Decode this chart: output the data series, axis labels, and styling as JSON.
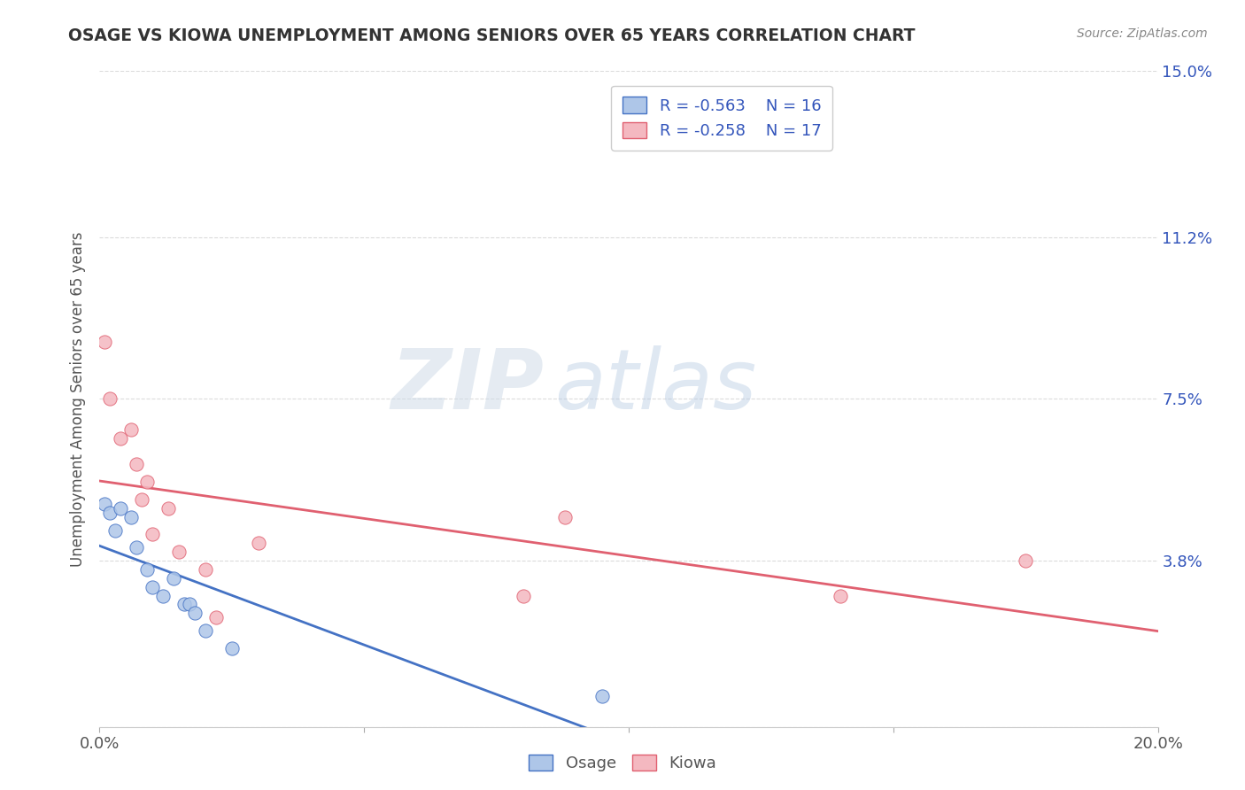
{
  "title": "OSAGE VS KIOWA UNEMPLOYMENT AMONG SENIORS OVER 65 YEARS CORRELATION CHART",
  "source": "Source: ZipAtlas.com",
  "ylabel": "Unemployment Among Seniors over 65 years",
  "xlim": [
    0.0,
    0.2
  ],
  "ylim": [
    0.0,
    0.15
  ],
  "ytick_labels": [
    "",
    "3.8%",
    "7.5%",
    "11.2%",
    "15.0%"
  ],
  "ytick_values": [
    0.0,
    0.038,
    0.075,
    0.112,
    0.15
  ],
  "xtick_labels": [
    "0.0%",
    "",
    "",
    "",
    "20.0%"
  ],
  "xtick_values": [
    0.0,
    0.05,
    0.1,
    0.15,
    0.2
  ],
  "osage_x": [
    0.001,
    0.002,
    0.003,
    0.004,
    0.006,
    0.007,
    0.009,
    0.01,
    0.012,
    0.014,
    0.016,
    0.017,
    0.018,
    0.02,
    0.025,
    0.095
  ],
  "osage_y": [
    0.051,
    0.049,
    0.045,
    0.05,
    0.048,
    0.041,
    0.036,
    0.032,
    0.03,
    0.034,
    0.028,
    0.028,
    0.026,
    0.022,
    0.018,
    0.007
  ],
  "kiowa_x": [
    0.001,
    0.002,
    0.004,
    0.006,
    0.007,
    0.008,
    0.009,
    0.01,
    0.013,
    0.015,
    0.02,
    0.022,
    0.03,
    0.08,
    0.088,
    0.14,
    0.175
  ],
  "kiowa_y": [
    0.088,
    0.075,
    0.066,
    0.068,
    0.06,
    0.052,
    0.056,
    0.044,
    0.05,
    0.04,
    0.036,
    0.025,
    0.042,
    0.03,
    0.048,
    0.03,
    0.038
  ],
  "osage_color": "#aec6e8",
  "kiowa_color": "#f4b8c0",
  "osage_line_color": "#4472c4",
  "kiowa_line_color": "#e06070",
  "osage_R": -0.563,
  "osage_N": 16,
  "kiowa_R": -0.258,
  "kiowa_N": 17,
  "legend_text_color": "#3355bb",
  "watermark_zip_color": "#ccd8e8",
  "watermark_atlas_color": "#b8cce4",
  "background_color": "#ffffff",
  "grid_color": "#cccccc"
}
